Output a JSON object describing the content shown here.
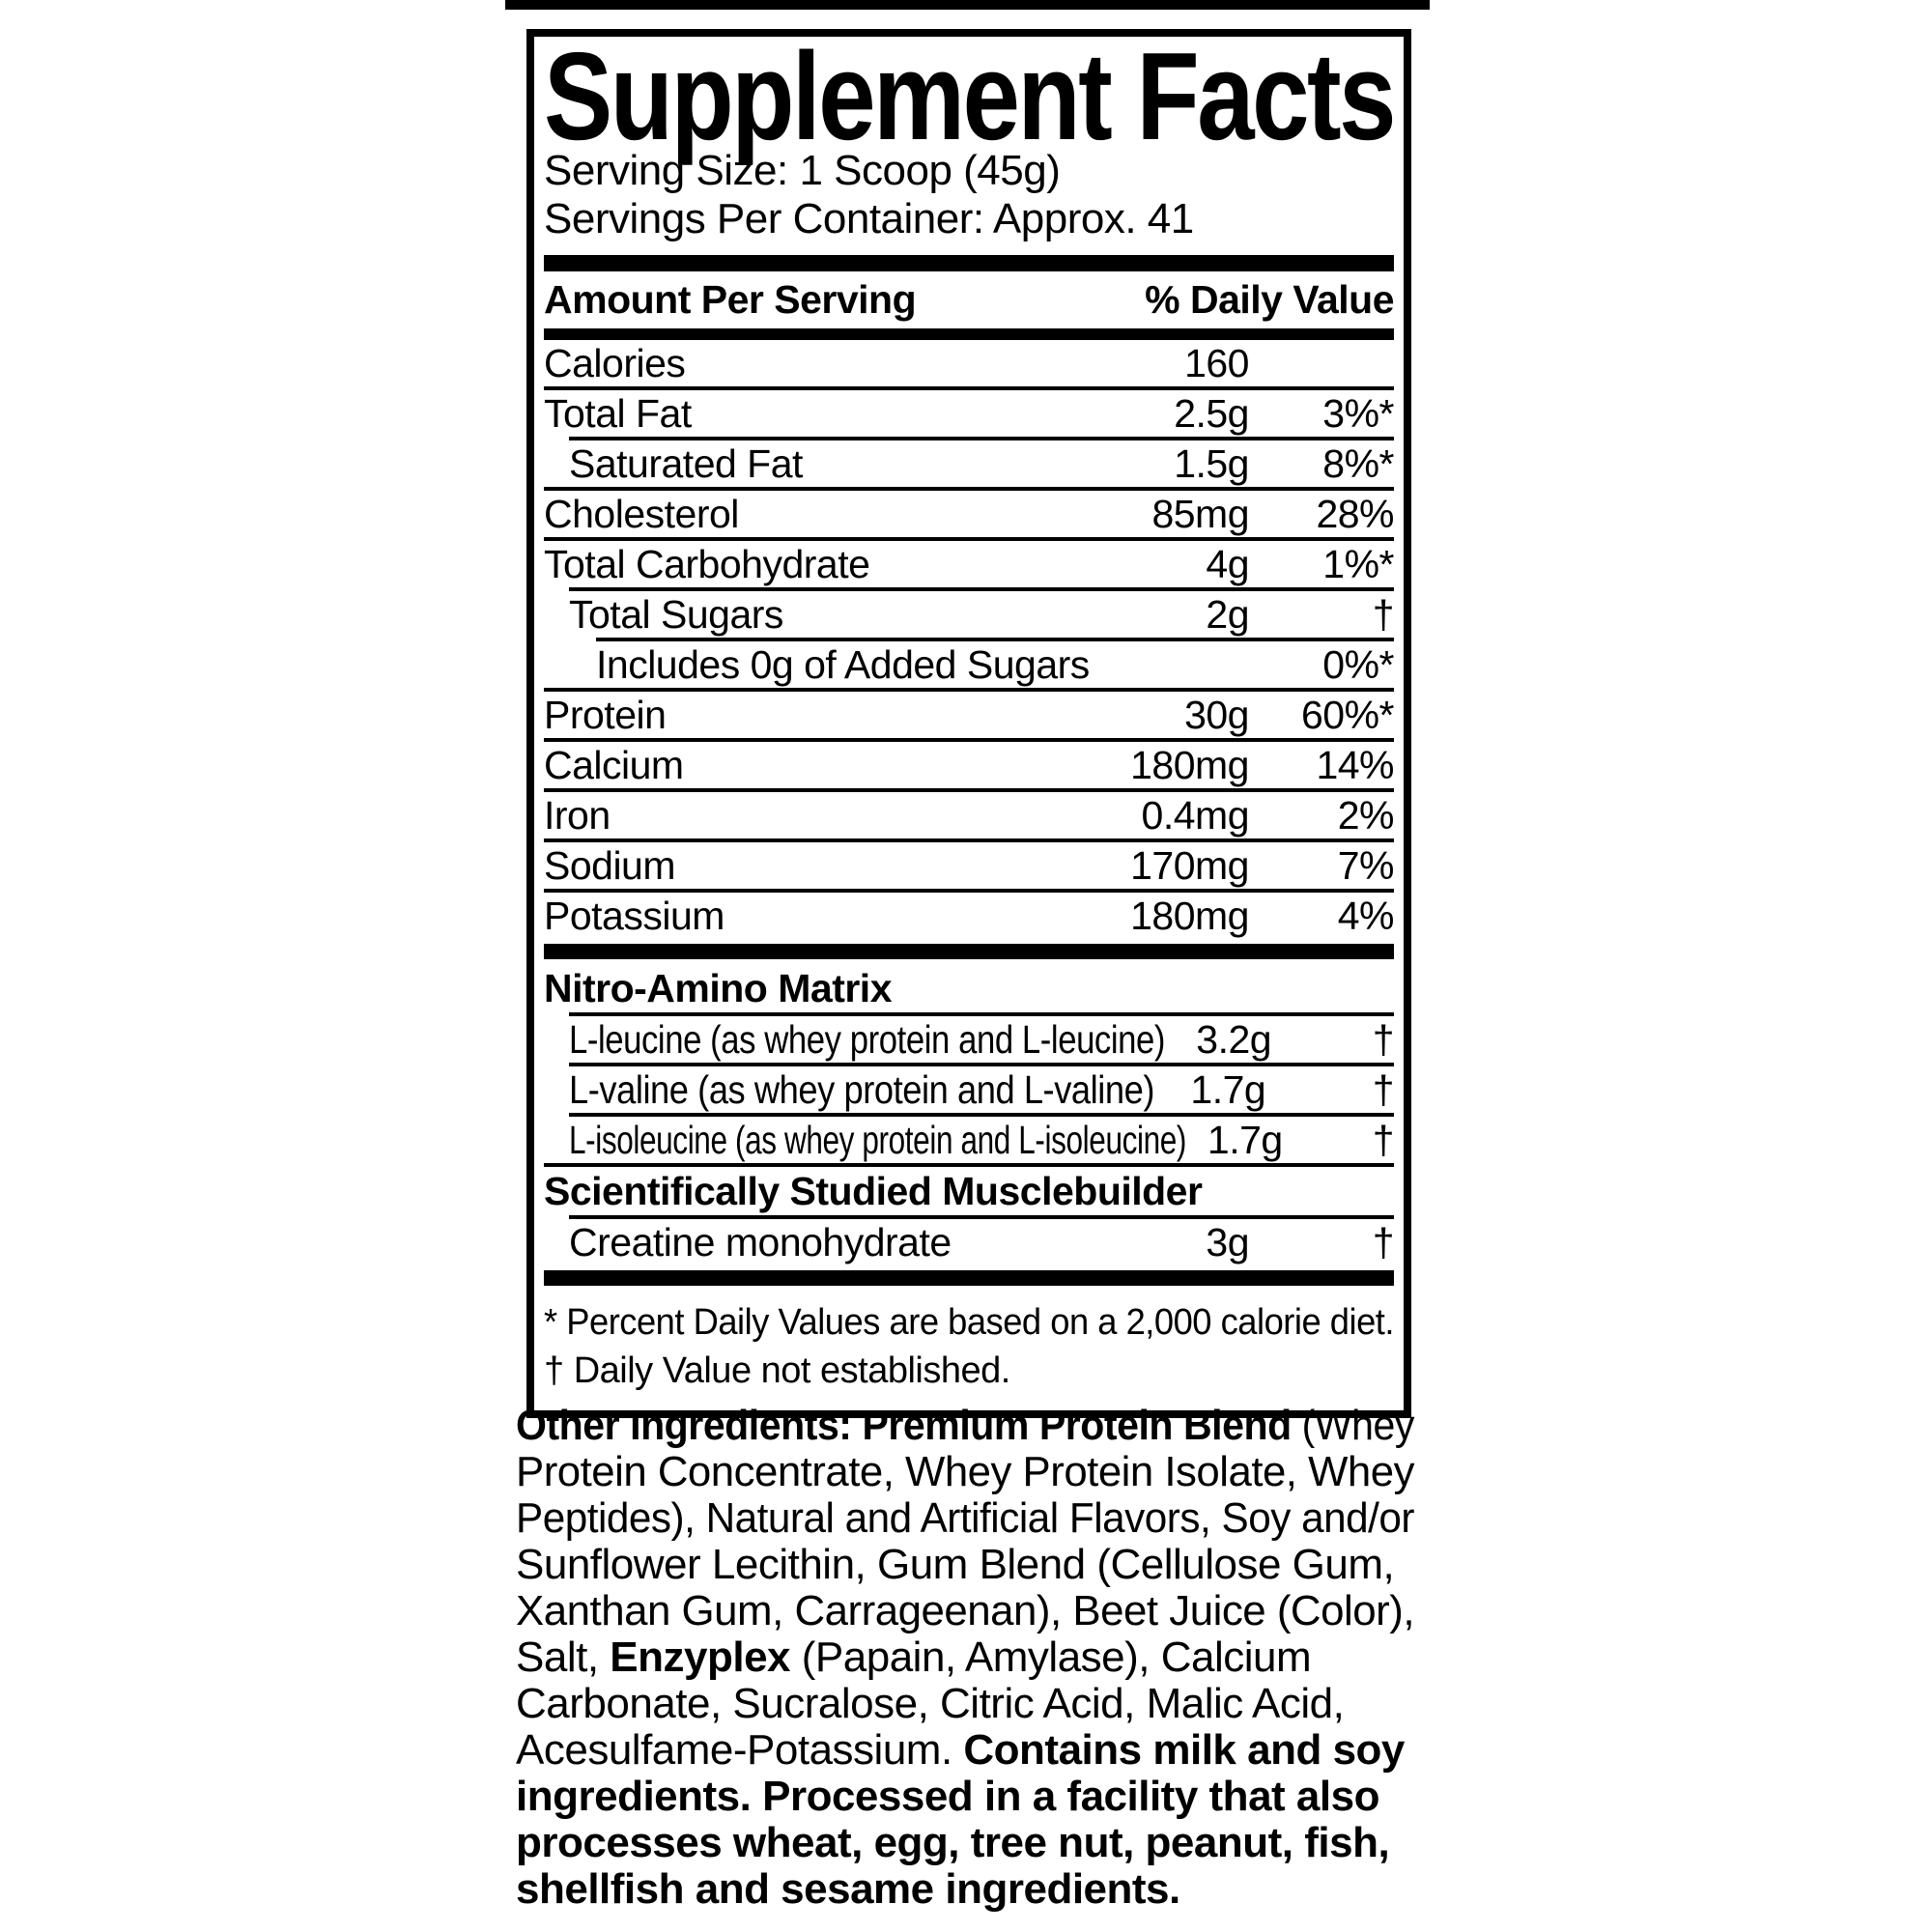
{
  "panel": {
    "title": "Supplement Facts",
    "serving_size": "Serving Size: 1 Scoop (45g)",
    "servings_per_container": "Servings Per Container: Approx. 41",
    "columns": {
      "amount": "Amount Per Serving",
      "daily_value": "% Daily Value"
    },
    "rows": [
      {
        "kind": "row",
        "name": "Calories",
        "amount": "160",
        "dv": "",
        "indent": 0
      },
      {
        "kind": "row",
        "name": "Total Fat",
        "amount": "2.5g",
        "dv": "3%*",
        "indent": 0
      },
      {
        "kind": "row",
        "name": "Saturated Fat",
        "amount": "1.5g",
        "dv": "8%*",
        "indent": 1
      },
      {
        "kind": "row",
        "name": "Cholesterol",
        "amount": "85mg",
        "dv": "28%",
        "indent": 0
      },
      {
        "kind": "row",
        "name": "Total Carbohydrate",
        "amount": "4g",
        "dv": "1%*",
        "indent": 0
      },
      {
        "kind": "row",
        "name": "Total Sugars",
        "amount": "2g",
        "dv": "†",
        "indent": 1
      },
      {
        "kind": "row",
        "name": "Includes 0g of Added Sugars",
        "amount": "",
        "dv": "0%*",
        "indent": 2
      },
      {
        "kind": "row",
        "name": "Protein",
        "amount": "30g",
        "dv": "60%*",
        "indent": 0
      },
      {
        "kind": "row",
        "name": "Calcium",
        "amount": "180mg",
        "dv": "14%",
        "indent": 0
      },
      {
        "kind": "row",
        "name": "Iron",
        "amount": "0.4mg",
        "dv": "2%",
        "indent": 0
      },
      {
        "kind": "row",
        "name": "Sodium",
        "amount": "170mg",
        "dv": "7%",
        "indent": 0
      },
      {
        "kind": "row",
        "name": "Potassium",
        "amount": "180mg",
        "dv": "4%",
        "indent": 0
      },
      {
        "kind": "bar"
      },
      {
        "kind": "heading",
        "name": "Nitro-Amino Matrix"
      },
      {
        "kind": "row",
        "name": "L-leucine (as whey protein and L-leucine)",
        "amount": "3.2g",
        "dv": "†",
        "indent": 1
      },
      {
        "kind": "row",
        "name": "L-valine (as whey protein and L-valine)",
        "amount": "1.7g",
        "dv": "†",
        "indent": 1
      },
      {
        "kind": "row",
        "name": "L-isoleucine (as whey protein and L-isoleucine)",
        "amount": "1.7g",
        "dv": "†",
        "indent": 1
      },
      {
        "kind": "heading",
        "name": "Scientifically Studied Musclebuilder"
      },
      {
        "kind": "row",
        "name": "Creatine monohydrate",
        "amount": "3g",
        "dv": "†",
        "indent": 1
      },
      {
        "kind": "bar"
      }
    ],
    "footnotes": [
      "* Percent Daily Values are based on a 2,000 calorie diet.",
      "† Daily Value not established."
    ]
  },
  "other_ingredients": {
    "lines": [
      [
        {
          "t": "Other Ingredients: Premium Protein Blend",
          "b": true
        },
        {
          "t": " (Whey",
          "b": false
        }
      ],
      [
        {
          "t": "Protein Concentrate, Whey Protein Isolate, Whey",
          "b": false
        }
      ],
      [
        {
          "t": "Peptides), Natural and Artificial Flavors, Soy and/or",
          "b": false
        }
      ],
      [
        {
          "t": "Sunflower Lecithin, Gum Blend (Cellulose Gum,",
          "b": false
        }
      ],
      [
        {
          "t": "Xanthan Gum, Carrageenan), Beet Juice (Color),",
          "b": false
        }
      ],
      [
        {
          "t": "Salt, ",
          "b": false
        },
        {
          "t": "Enzyplex",
          "b": true
        },
        {
          "t": " (Papain, Amylase), Calcium",
          "b": false
        }
      ],
      [
        {
          "t": "Carbonate, Sucralose, Citric Acid, Malic Acid,",
          "b": false
        }
      ],
      [
        {
          "t": "Acesulfame-Potassium. ",
          "b": false
        },
        {
          "t": "Contains milk and soy",
          "b": true
        }
      ],
      [
        {
          "t": "ingredients. Processed in a facility that also",
          "b": true
        }
      ],
      [
        {
          "t": "processes wheat, egg, tree nut, peanut, fish,",
          "b": true
        }
      ],
      [
        {
          "t": "shellfish and sesame ingredients.",
          "b": true
        }
      ]
    ]
  },
  "colors": {
    "ink": "#000000",
    "paper": "#ffffff"
  }
}
